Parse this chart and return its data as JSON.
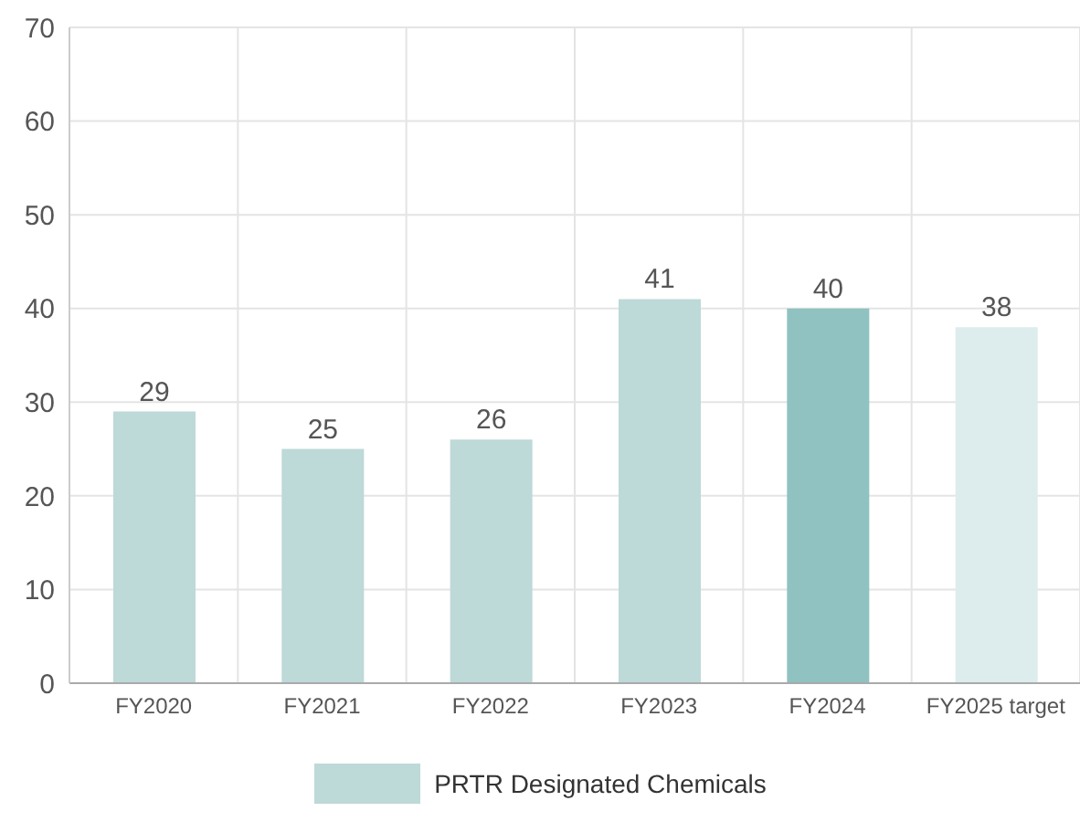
{
  "chart_data": {
    "type": "bar",
    "categories": [
      "FY2020",
      "FY2021",
      "FY2022",
      "FY2023",
      "FY2024",
      "FY2025 target"
    ],
    "series": [
      {
        "name": "PRTR Designated Chemicals",
        "color": "#bdd9d8",
        "colors": [
          "#bdd9d8",
          "#bdd9d8",
          "#bdd9d8",
          "#bdd9d8",
          "#8fc2c0",
          "#ddecec"
        ],
        "values": [
          29,
          25,
          26,
          41,
          40,
          38
        ]
      }
    ],
    "ylim": [
      0,
      70
    ],
    "yticks": [
      0,
      10,
      20,
      30,
      40,
      50,
      60,
      70
    ],
    "grid": true,
    "legend": "bottom",
    "data_labels": true
  }
}
